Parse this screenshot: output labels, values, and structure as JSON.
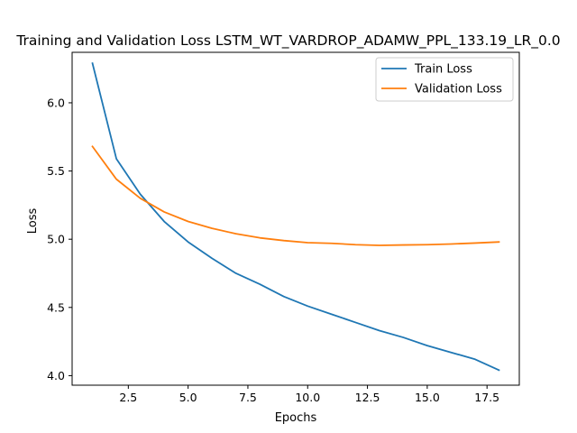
{
  "chart_data": {
    "type": "line",
    "title": "Training and Validation Loss LSTM_WT_VARDROP_ADAMW_PPL_133.19_LR_0.0",
    "xlabel": "Epochs",
    "ylabel": "Loss",
    "xlim": [
      0.15,
      18.85
    ],
    "ylim": [
      3.93,
      6.37
    ],
    "x_ticks": [
      2.5,
      5.0,
      7.5,
      10.0,
      12.5,
      15.0,
      17.5
    ],
    "x_tick_labels": [
      "2.5",
      "5.0",
      "7.5",
      "10.0",
      "12.5",
      "15.0",
      "17.5"
    ],
    "y_ticks": [
      4.0,
      4.5,
      5.0,
      5.5,
      6.0
    ],
    "y_tick_labels": [
      "4.0",
      "4.5",
      "5.0",
      "5.5",
      "6.0"
    ],
    "x": [
      1,
      2,
      3,
      4,
      5,
      6,
      7,
      8,
      9,
      10,
      11,
      12,
      13,
      14,
      15,
      16,
      17,
      18
    ],
    "series": [
      {
        "name": "Train Loss",
        "color": "#1f77b4",
        "values": [
          6.29,
          5.59,
          5.33,
          5.13,
          4.98,
          4.86,
          4.75,
          4.67,
          4.58,
          4.51,
          4.45,
          4.39,
          4.33,
          4.28,
          4.22,
          4.17,
          4.12,
          4.04
        ]
      },
      {
        "name": "Validation Loss",
        "color": "#ff7f0e",
        "values": [
          5.68,
          5.44,
          5.3,
          5.2,
          5.13,
          5.08,
          5.04,
          5.01,
          4.99,
          4.975,
          4.97,
          4.96,
          4.955,
          4.958,
          4.96,
          4.965,
          4.972,
          4.98
        ]
      }
    ],
    "grid": false,
    "legend_position": "top-right"
  }
}
